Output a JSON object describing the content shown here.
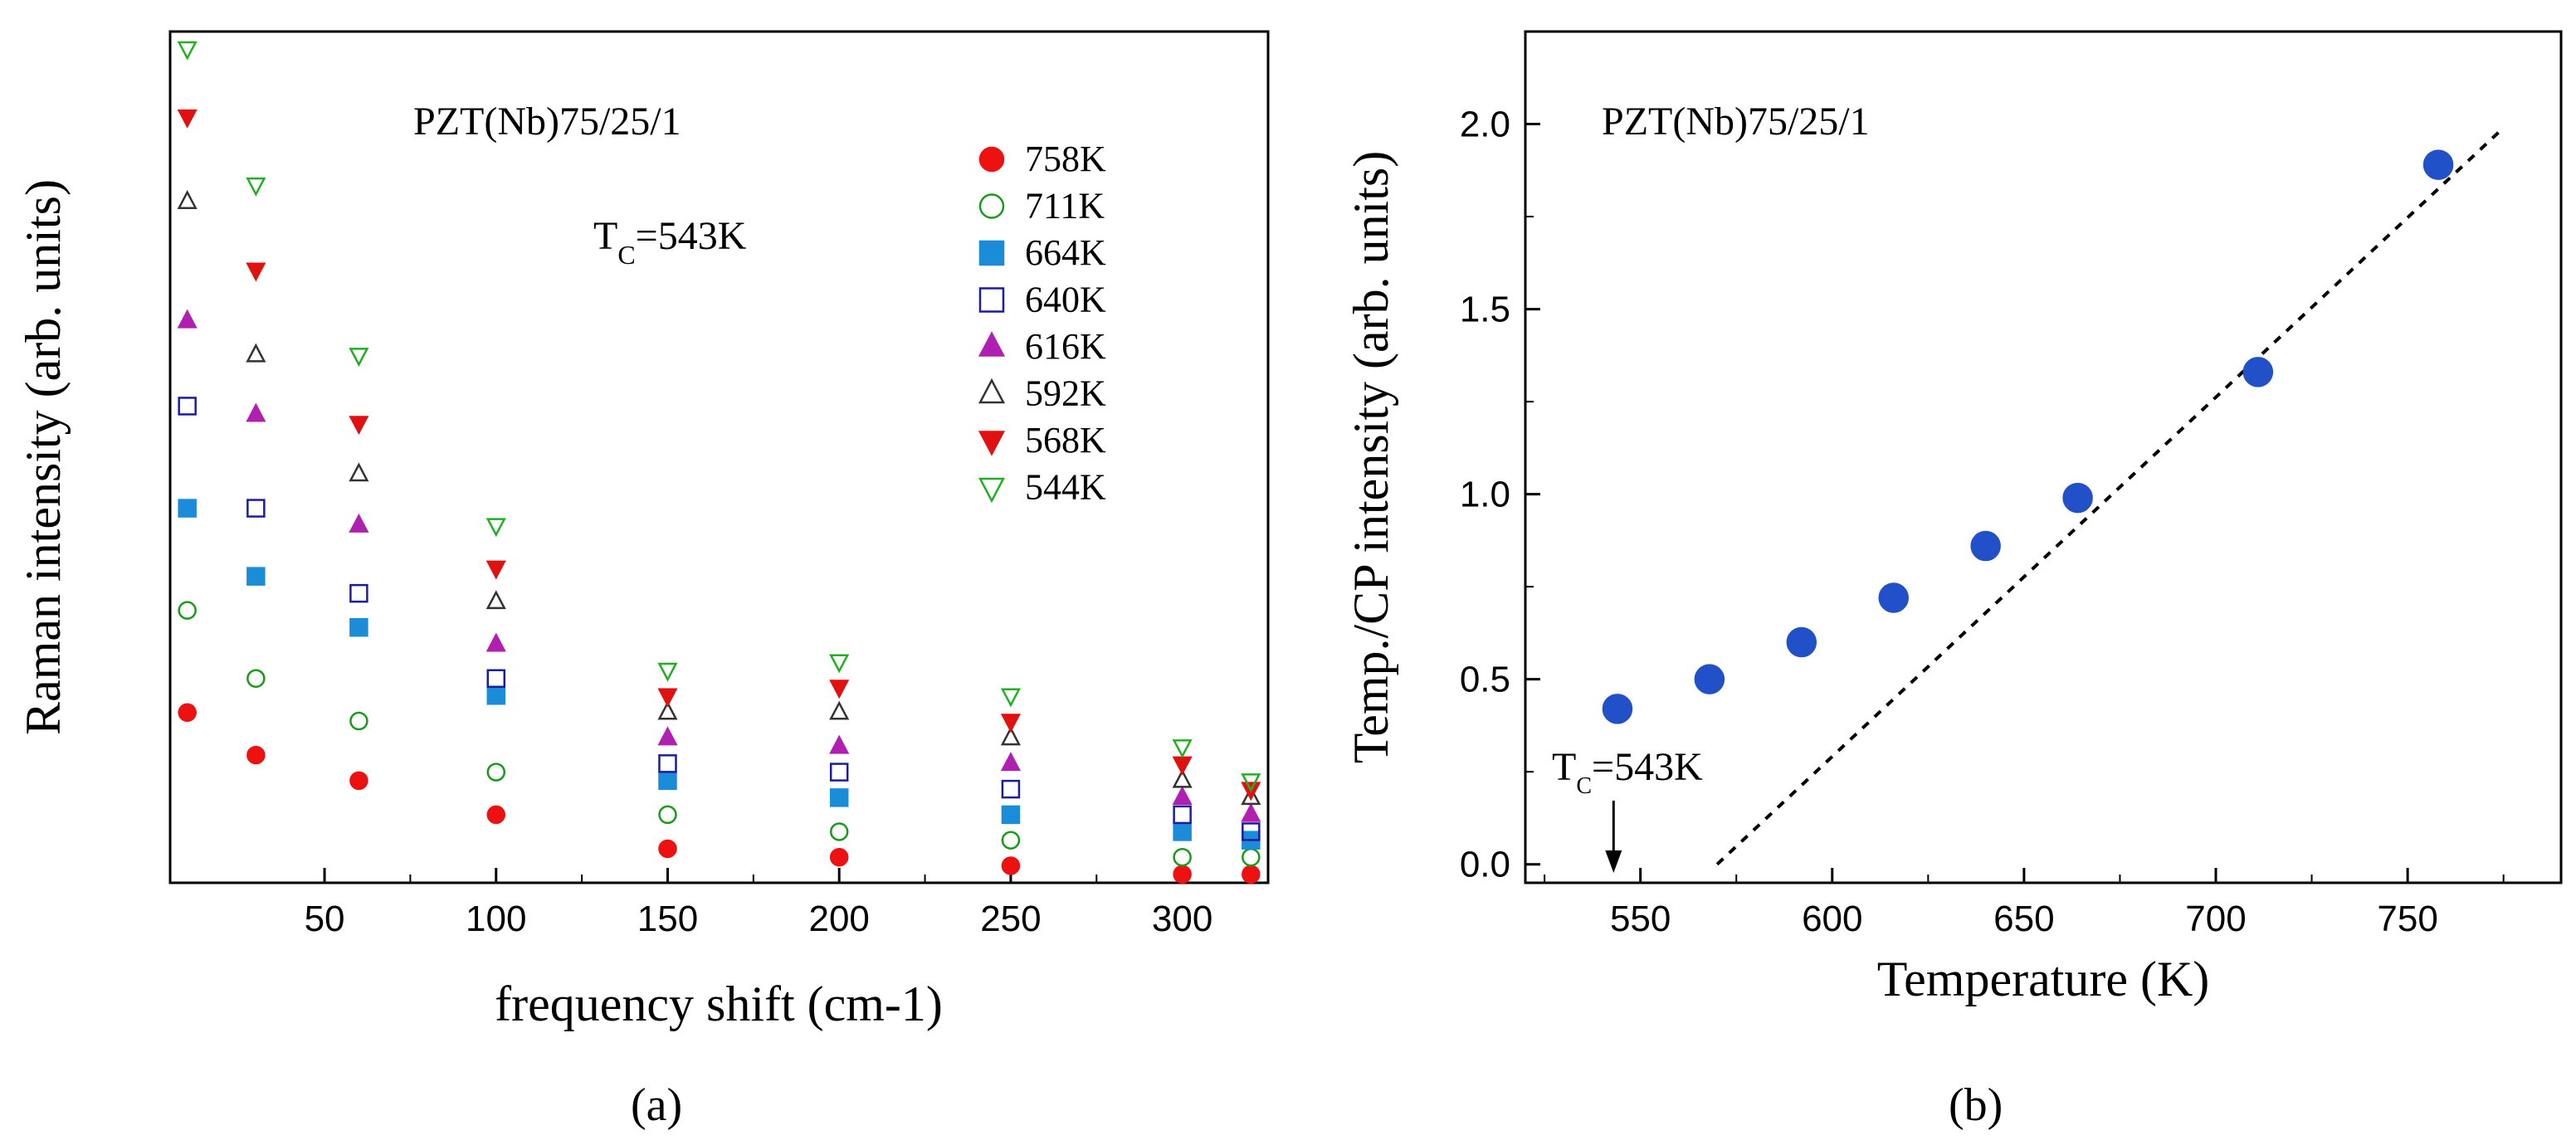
{
  "chart_data": [
    {
      "panel": "(a)",
      "type": "scatter",
      "xlabel": "frequency shift (cm-1)",
      "ylabel": "Raman intensity (arb. units)",
      "xlim": [
        5,
        325
      ],
      "ylim": [
        0,
        1
      ],
      "x_ticks": [
        "50",
        "100",
        "150",
        "200",
        "250",
        "300"
      ],
      "y_ticks_labeled": false,
      "annotations": {
        "sample": "PZT(Nb)75/25/1",
        "tc_main": "T",
        "tc_sub": "C",
        "tc_rest": "=543K"
      },
      "series": [
        {
          "name": "758K",
          "marker": "circle",
          "filled": true,
          "color": "#ee1111",
          "x": [
            10,
            30,
            60,
            100,
            150,
            200,
            250,
            300,
            320
          ],
          "y": [
            0.2,
            0.15,
            0.12,
            0.08,
            0.04,
            0.03,
            0.02,
            0.01,
            0.01
          ]
        },
        {
          "name": "711K",
          "marker": "circle",
          "filled": false,
          "color": "#1a9a1a",
          "x": [
            10,
            30,
            60,
            100,
            150,
            200,
            250,
            300,
            320
          ],
          "y": [
            0.32,
            0.24,
            0.19,
            0.13,
            0.08,
            0.06,
            0.05,
            0.03,
            0.03
          ]
        },
        {
          "name": "664K",
          "marker": "square",
          "filled": true,
          "color": "#1a8cd8",
          "x": [
            10,
            30,
            60,
            100,
            150,
            200,
            250,
            300,
            320
          ],
          "y": [
            0.44,
            0.36,
            0.3,
            0.22,
            0.12,
            0.1,
            0.08,
            0.06,
            0.05
          ]
        },
        {
          "name": "640K",
          "marker": "square",
          "filled": false,
          "color": "#1c1ca0",
          "x": [
            10,
            30,
            60,
            100,
            150,
            200,
            250,
            300,
            320
          ],
          "y": [
            0.56,
            0.44,
            0.34,
            0.24,
            0.14,
            0.13,
            0.11,
            0.08,
            0.06
          ]
        },
        {
          "name": "616K",
          "marker": "triangle-up",
          "filled": true,
          "color": "#b020b0",
          "x": [
            10,
            30,
            60,
            100,
            150,
            200,
            250,
            300,
            320
          ],
          "y": [
            0.66,
            0.55,
            0.42,
            0.28,
            0.17,
            0.16,
            0.14,
            0.1,
            0.08
          ]
        },
        {
          "name": "592K",
          "marker": "triangle-up",
          "filled": false,
          "color": "#333333",
          "x": [
            10,
            30,
            60,
            100,
            150,
            200,
            250,
            300,
            320
          ],
          "y": [
            0.8,
            0.62,
            0.48,
            0.33,
            0.2,
            0.2,
            0.17,
            0.12,
            0.1
          ]
        },
        {
          "name": "568K",
          "marker": "triangle-down",
          "filled": true,
          "color": "#e11111",
          "x": [
            10,
            30,
            60,
            100,
            150,
            200,
            250,
            300,
            320
          ],
          "y": [
            0.9,
            0.72,
            0.54,
            0.37,
            0.22,
            0.23,
            0.19,
            0.14,
            0.11
          ]
        },
        {
          "name": "544K",
          "marker": "triangle-down",
          "filled": false,
          "color": "#22b022",
          "x": [
            10,
            30,
            60,
            100,
            150,
            200,
            250,
            300,
            320
          ],
          "y": [
            0.98,
            0.82,
            0.62,
            0.42,
            0.25,
            0.26,
            0.22,
            0.16,
            0.12
          ]
        }
      ]
    },
    {
      "panel": "(b)",
      "type": "scatter",
      "xlabel": "Temperature (K)",
      "ylabel": "Temp./CP intensity (arb. units)",
      "xlim": [
        520,
        790
      ],
      "ylim": [
        -0.05,
        2.25
      ],
      "x_ticks": [
        550,
        600,
        650,
        700,
        750
      ],
      "y_ticks": [
        0.0,
        0.5,
        1.0,
        1.5,
        2.0
      ],
      "annotations": {
        "sample": "PZT(Nb)75/25/1",
        "tc_main": "T",
        "tc_sub": "C",
        "tc_rest": "=543K",
        "tc_arrow_x": 543
      },
      "series": [
        {
          "marker": "circle",
          "filled": true,
          "color": "#2150c8",
          "x": [
            544,
            568,
            592,
            616,
            640,
            664,
            711,
            758
          ],
          "y": [
            0.42,
            0.5,
            0.6,
            0.72,
            0.86,
            0.99,
            1.33,
            1.89
          ]
        }
      ],
      "fit_line": {
        "style": "dotted",
        "color": "#000000",
        "x": [
          570,
          775
        ],
        "y": [
          0.0,
          1.99
        ]
      }
    }
  ]
}
